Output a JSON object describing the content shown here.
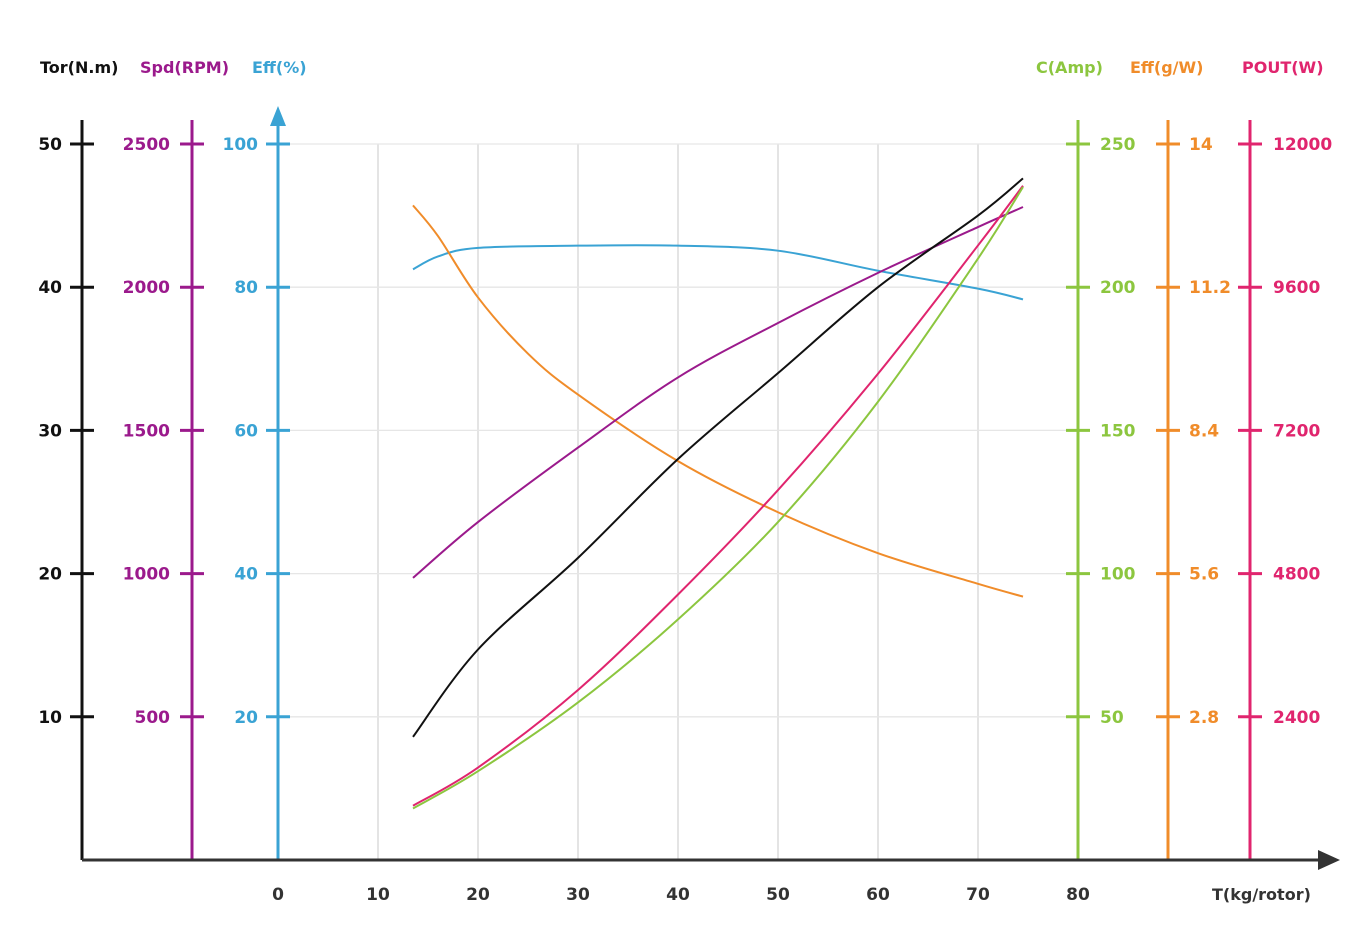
{
  "chart_data": {
    "type": "line",
    "title": "",
    "xlabel": "T(kg/rotor)",
    "xlim": [
      0,
      80
    ],
    "x_ticks": [
      0,
      10,
      20,
      30,
      40,
      50,
      60,
      70,
      80
    ],
    "grid": true,
    "colors": {
      "torque": "#111111",
      "speed": "#9b1a8c",
      "eff_pct": "#3aa3d4",
      "current": "#8cc63f",
      "eff_gw": "#f08c2a",
      "pout": "#e0256e",
      "axis": "#333333",
      "grid": "#d6d6d6"
    },
    "axes": [
      {
        "key": "torque",
        "title": "Tor(N.m)",
        "side": "left",
        "ylim": [
          0,
          50
        ],
        "ticks": [
          10,
          20,
          30,
          40,
          50
        ],
        "tick_labels": [
          "10",
          "20",
          "30",
          "40",
          "50"
        ]
      },
      {
        "key": "speed",
        "title": "Spd(RPM)",
        "side": "left",
        "ylim": [
          0,
          2500
        ],
        "ticks": [
          500,
          1000,
          1500,
          2000,
          2500
        ],
        "tick_labels": [
          "500",
          "1000",
          "1500",
          "2000",
          "2500"
        ]
      },
      {
        "key": "eff_pct",
        "title": "Eff(%)",
        "side": "left",
        "ylim": [
          0,
          100
        ],
        "ticks": [
          20,
          40,
          60,
          80,
          100
        ],
        "tick_labels": [
          "20",
          "40",
          "60",
          "80",
          "100"
        ]
      },
      {
        "key": "current",
        "title": "C(Amp)",
        "side": "right",
        "ylim": [
          0,
          250
        ],
        "ticks": [
          50,
          100,
          150,
          200,
          250
        ],
        "tick_labels": [
          "50",
          "100",
          "150",
          "200",
          "250"
        ]
      },
      {
        "key": "eff_gw",
        "title": "Eff(g/W)",
        "side": "right",
        "ylim": [
          0,
          14
        ],
        "ticks": [
          2.8,
          5.6,
          8.4,
          11.2,
          14
        ],
        "tick_labels": [
          "2.8",
          "5.6",
          "8.4",
          "11.2",
          "14"
        ]
      },
      {
        "key": "pout",
        "title": "POUT(W)",
        "side": "right",
        "ylim": [
          0,
          12000
        ],
        "ticks": [
          2400,
          4800,
          7200,
          9600,
          12000
        ],
        "tick_labels": [
          "2400",
          "4800",
          "7200",
          "9600",
          "12000"
        ]
      }
    ],
    "series": [
      {
        "name": "Torque",
        "axis": "torque",
        "x": [
          13.5,
          20,
          30,
          40,
          50,
          60,
          70,
          74.5
        ],
        "values": [
          8.6,
          14.7,
          21.1,
          28.0,
          34.0,
          40.0,
          45.0,
          47.6
        ]
      },
      {
        "name": "Speed",
        "axis": "speed",
        "x": [
          13.5,
          20,
          30,
          40,
          50,
          60,
          70,
          74.5
        ],
        "values": [
          985,
          1180,
          1440,
          1685,
          1875,
          2050,
          2210,
          2280
        ]
      },
      {
        "name": "Efficiency %",
        "axis": "eff_pct",
        "x": [
          13.5,
          16,
          20,
          30,
          40,
          50,
          60,
          70,
          74.5
        ],
        "values": [
          82.5,
          84.3,
          85.5,
          85.8,
          85.8,
          85.1,
          82.3,
          79.8,
          78.3
        ]
      },
      {
        "name": "Efficiency g/W",
        "axis": "eff_gw",
        "x": [
          13.5,
          16,
          20,
          25,
          30,
          40,
          50,
          60,
          70,
          74.5
        ],
        "values": [
          12.8,
          12.2,
          11.0,
          9.9,
          9.1,
          7.8,
          6.8,
          6.0,
          5.4,
          5.15
        ]
      },
      {
        "name": "Current",
        "axis": "current",
        "x": [
          13.5,
          20,
          30,
          40,
          50,
          60,
          70,
          74.5
        ],
        "values": [
          18,
          31,
          55,
          84,
          118,
          160,
          210,
          235
        ]
      },
      {
        "name": "POUT",
        "axis": "pout",
        "x": [
          13.5,
          20,
          30,
          40,
          50,
          60,
          70,
          74.5
        ],
        "values": [
          910,
          1550,
          2850,
          4450,
          6200,
          8150,
          10300,
          11300
        ]
      }
    ]
  }
}
